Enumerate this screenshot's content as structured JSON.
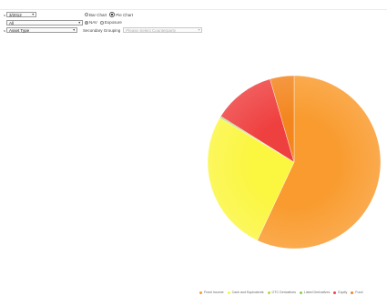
{
  "controls": {
    "year": {
      "value": "3/2012"
    },
    "filter": {
      "value": "All"
    },
    "breakdown": {
      "value": "Asset Type"
    },
    "chart_type": {
      "options": [
        {
          "label": "Bar Chart",
          "selected": false
        },
        {
          "label": "Pie Chart",
          "selected": true
        }
      ]
    },
    "measure": {
      "options": [
        {
          "label": "NAV",
          "selected": true
        },
        {
          "label": "Exposure",
          "selected": false
        }
      ]
    },
    "secondary_grouping": {
      "label": "Secondary Grouping",
      "placeholder": "Please Select Counterparty"
    }
  },
  "colors": {
    "orange": "#f99b2e",
    "yellow": "#fbf640",
    "green": "#8fcf4a",
    "lime": "#b6d94a",
    "red": "#ef4040",
    "dark_orange": "#f3861f"
  },
  "chart_data": {
    "type": "pie",
    "title": "",
    "legend_position": "bottom-right",
    "slices": [
      {
        "name": "Fixed Income",
        "value": 57.0,
        "color": "#f99b2e"
      },
      {
        "name": "Cash and Equivalents",
        "value": 26.5,
        "color": "#fbf640"
      },
      {
        "name": "OTC Derivatives",
        "value": 0.2,
        "color": "#b6d94a"
      },
      {
        "name": "Listed Derivatives",
        "value": 0.2,
        "color": "#8fcf4a"
      },
      {
        "name": "Equity",
        "value": 11.6,
        "color": "#ef4040"
      },
      {
        "name": "Fund",
        "value": 4.5,
        "color": "#f3861f"
      }
    ]
  }
}
